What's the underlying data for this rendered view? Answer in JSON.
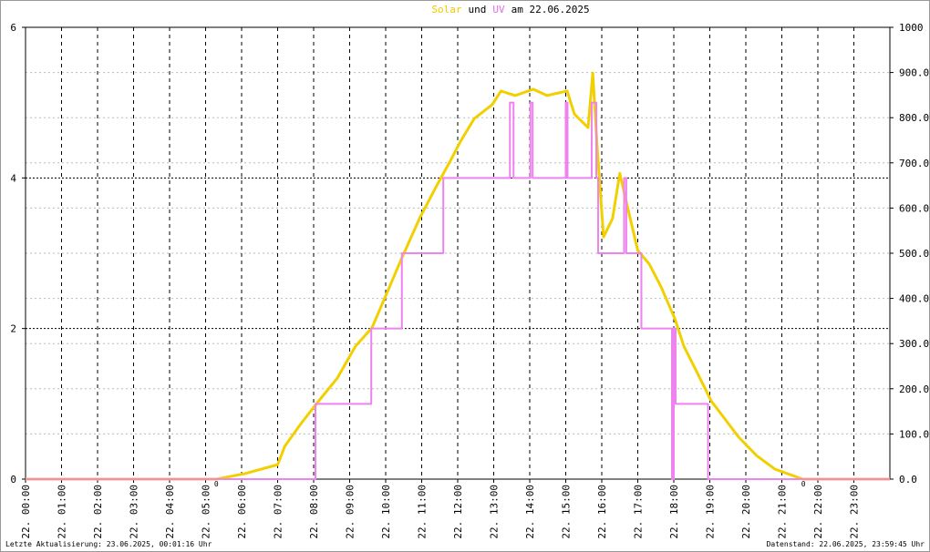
{
  "chart_data": {
    "type": "line",
    "title": [
      {
        "text": "Solar",
        "color": "#f5c800"
      },
      {
        "text": "und"
      },
      {
        "text": "UV",
        "color": "#e070e0"
      },
      {
        "text": "am 22.06.2025"
      }
    ],
    "xlim": [
      0,
      24
    ],
    "xticks": [
      {
        "value": 0,
        "label": "22. 00:00"
      },
      {
        "value": 1,
        "label": "22. 01:00"
      },
      {
        "value": 2,
        "label": "22. 02:00"
      },
      {
        "value": 3,
        "label": "22. 03:00"
      },
      {
        "value": 4,
        "label": "22. 04:00"
      },
      {
        "value": 5,
        "label": "22. 05:00"
      },
      {
        "value": 6,
        "label": "22. 06:00"
      },
      {
        "value": 7,
        "label": "22. 07:00"
      },
      {
        "value": 8,
        "label": "22. 08:00"
      },
      {
        "value": 9,
        "label": "22. 09:00"
      },
      {
        "value": 10,
        "label": "22. 10:00"
      },
      {
        "value": 11,
        "label": "22. 11:00"
      },
      {
        "value": 12,
        "label": "22. 12:00"
      },
      {
        "value": 13,
        "label": "22. 13:00"
      },
      {
        "value": 14,
        "label": "22. 14:00"
      },
      {
        "value": 15,
        "label": "22. 15:00"
      },
      {
        "value": 16,
        "label": "22. 16:00"
      },
      {
        "value": 17,
        "label": "22. 17:00"
      },
      {
        "value": 18,
        "label": "22. 18:00"
      },
      {
        "value": 19,
        "label": "22. 19:00"
      },
      {
        "value": 20,
        "label": "22. 20:00"
      },
      {
        "value": 21,
        "label": "22. 21:00"
      },
      {
        "value": 22,
        "label": "22. 22:00"
      },
      {
        "value": 23,
        "label": "22. 23:00"
      }
    ],
    "ylim": [
      0,
      6
    ],
    "yticks": [
      0,
      2,
      4,
      6
    ],
    "y2lim": [
      0,
      1000
    ],
    "y2ticks": [
      {
        "value": 0,
        "label": "0.0"
      },
      {
        "value": 100,
        "label": "100.0"
      },
      {
        "value": 200,
        "label": "200.0"
      },
      {
        "value": 300,
        "label": "300.0"
      },
      {
        "value": 400,
        "label": "400.0"
      },
      {
        "value": 500,
        "label": "500.0"
      },
      {
        "value": 600,
        "label": "600.0"
      },
      {
        "value": 700,
        "label": "700.0"
      },
      {
        "value": 800,
        "label": "800.0"
      },
      {
        "value": 900,
        "label": "900.0"
      },
      {
        "value": 1000,
        "label": "1000"
      }
    ],
    "grid": true,
    "series": [
      {
        "name": "Solar",
        "color": "#f2d000",
        "axis": "y2",
        "x": [
          0,
          5.3,
          6.08,
          7.0,
          7.2,
          7.65,
          8.1,
          8.66,
          9.16,
          9.62,
          10.05,
          10.43,
          10.94,
          11.4,
          11.82,
          12.08,
          12.46,
          12.96,
          13.2,
          13.6,
          14.1,
          14.48,
          15.04,
          15.24,
          15.62,
          15.75,
          15.87,
          16.05,
          16.3,
          16.5,
          16.76,
          17.0,
          17.32,
          17.65,
          18.03,
          18.28,
          18.66,
          19.04,
          19.42,
          19.8,
          20.3,
          20.81,
          21.44,
          21.57,
          24
        ],
        "values": [
          0,
          0,
          12,
          32,
          73,
          123,
          169,
          224,
          294,
          335,
          415,
          486,
          577,
          647,
          708,
          748,
          798,
          829,
          859,
          849,
          863,
          849,
          859,
          808,
          778,
          899,
          738,
          536,
          577,
          677,
          587,
          506,
          476,
          425,
          355,
          294,
          234,
          173,
          133,
          93,
          52,
          22,
          4,
          0,
          0
        ]
      },
      {
        "name": "UV",
        "color": "#ee82ee",
        "x": [
          0,
          8.05,
          8.05,
          9.6,
          9.6,
          10.45,
          10.45,
          11.6,
          11.6,
          13.45,
          13.45,
          13.55,
          13.55,
          14.02,
          14.02,
          14.08,
          14.08,
          15.0,
          15.0,
          15.05,
          15.05,
          15.72,
          15.72,
          15.85,
          15.85,
          15.9,
          15.9,
          16.62,
          16.62,
          16.68,
          16.68,
          17.1,
          17.1,
          17.95,
          17.95,
          18.0,
          18.0,
          18.05,
          18.05,
          18.95,
          18.95,
          24
        ],
        "values": [
          0,
          0,
          1,
          1,
          2,
          2,
          3,
          3,
          4,
          4,
          5,
          5,
          4,
          4,
          5,
          5,
          4,
          4,
          5,
          5,
          4,
          4,
          5,
          5,
          4,
          4,
          3,
          3,
          4,
          4,
          3,
          3,
          2,
          2,
          0,
          0,
          2,
          2,
          1,
          1,
          0,
          0
        ]
      }
    ],
    "annotations": [
      {
        "text": "0",
        "x": 5.3
      },
      {
        "text": "0",
        "x": 21.6
      }
    ],
    "footer_left": "Letzte Aktualisierung: 23.06.2025, 00:01:16 Uhr",
    "footer_right": "Datenstand: 22.06.2025, 23:59:45 Uhr"
  }
}
